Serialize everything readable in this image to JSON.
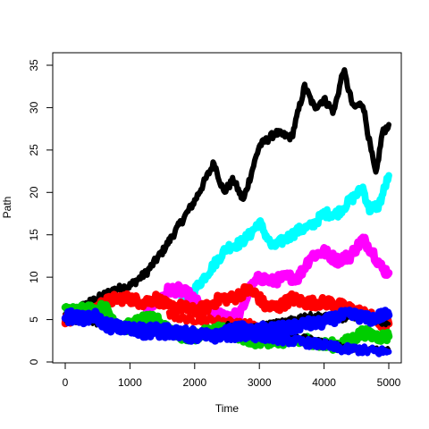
{
  "chart_data": {
    "type": "line",
    "title": "",
    "xlabel": "Time",
    "ylabel": "Path",
    "xlim": [
      0,
      5000
    ],
    "ylim": [
      0,
      36
    ],
    "xticks": [
      0,
      1000,
      2000,
      3000,
      4000,
      5000
    ],
    "yticks": [
      0,
      5,
      10,
      15,
      20,
      25,
      30,
      35
    ],
    "grid": false,
    "legend": "none",
    "series": [
      {
        "color": "#000000",
        "band": 0.7,
        "x": [
          0,
          250,
          500,
          750,
          1000,
          1250,
          1500,
          1750,
          2000,
          2100,
          2300,
          2450,
          2600,
          2750,
          3000,
          3250,
          3500,
          3700,
          3850,
          4000,
          4150,
          4300,
          4450,
          4600,
          4700,
          4800,
          4900,
          5000
        ],
        "y": [
          5.5,
          6.5,
          7.5,
          8.5,
          9.0,
          10.5,
          13.0,
          16.0,
          19.0,
          20.5,
          23.5,
          20.0,
          21.5,
          19.0,
          25.5,
          27.0,
          26.5,
          32.5,
          30.0,
          31.0,
          29.5,
          34.5,
          30.0,
          30.5,
          26.0,
          22.0,
          27.0,
          28.0
        ]
      },
      {
        "color": "#00ffff",
        "band": 0.9,
        "x": [
          1800,
          1900,
          2000,
          2100,
          2300,
          2500,
          2700,
          2850,
          3000,
          3200,
          3400,
          3600,
          3800,
          4000,
          4200,
          4400,
          4600,
          4700,
          4850,
          5000
        ],
        "y": [
          7.0,
          7.5,
          8.5,
          9.5,
          11.5,
          13.5,
          14.0,
          15.0,
          16.5,
          13.5,
          14.5,
          15.5,
          16.0,
          17.5,
          17.5,
          19.0,
          20.5,
          18.0,
          18.5,
          22.0
        ]
      },
      {
        "color": "#ff00ff",
        "band": 1.0,
        "x": [
          1200,
          1400,
          1600,
          1750,
          1900,
          2100,
          2300,
          2500,
          2700,
          2850,
          3000,
          3200,
          3400,
          3600,
          3800,
          4000,
          4200,
          4400,
          4600,
          4750,
          4900,
          5000
        ],
        "y": [
          6.5,
          7.0,
          8.5,
          8.5,
          8.0,
          6.5,
          5.5,
          5.5,
          5.5,
          8.5,
          10.0,
          9.5,
          10.0,
          10.0,
          12.5,
          13.0,
          12.0,
          12.5,
          14.5,
          13.0,
          11.0,
          10.5
        ]
      },
      {
        "color": "#ff0000",
        "band": 1.0,
        "x": [
          0,
          200,
          400,
          600,
          800,
          1000,
          1200,
          1400,
          1600,
          1800,
          2000,
          2200,
          2400,
          2600,
          2800,
          2950,
          3100,
          3300,
          3500,
          3700,
          3900,
          4100,
          4300,
          4500,
          4700,
          4850,
          5000
        ],
        "y": [
          5.0,
          5.5,
          6.0,
          7.0,
          7.5,
          7.5,
          7.0,
          7.5,
          6.5,
          6.5,
          6.0,
          6.5,
          7.5,
          7.5,
          8.5,
          8.0,
          6.5,
          6.5,
          7.5,
          7.0,
          7.0,
          7.0,
          6.5,
          6.0,
          5.5,
          4.5,
          4.5
        ]
      },
      {
        "color": "#ff0000",
        "band": 0.7,
        "x": [
          1600,
          1900,
          2200,
          2500,
          2700,
          2900,
          3050
        ],
        "y": [
          5.5,
          5.0,
          5.0,
          4.8,
          4.5,
          4.5,
          3.5
        ]
      },
      {
        "color": "#00cd00",
        "band": 1.0,
        "x": [
          0,
          150,
          300,
          450,
          600,
          750,
          900,
          1050,
          1200,
          1400,
          1600,
          1800,
          2000,
          2200,
          2400,
          2600,
          2800,
          3000,
          3200,
          3400,
          3600,
          3800,
          4000,
          4200,
          4400,
          4600,
          4800,
          5000
        ],
        "y": [
          6.0,
          6.0,
          6.5,
          6.0,
          6.5,
          5.0,
          4.0,
          4.5,
          5.0,
          5.0,
          4.0,
          3.0,
          3.0,
          3.5,
          4.0,
          3.0,
          2.5,
          2.5,
          2.5,
          2.5,
          2.5,
          2.5,
          2.0,
          2.0,
          2.5,
          3.5,
          3.0,
          3.0
        ]
      },
      {
        "color": "#00cd00",
        "band": 0.7,
        "x": [
          1500,
          1900,
          2300,
          2600,
          2900,
          3200
        ],
        "y": [
          3.5,
          3.5,
          3.0,
          3.5,
          3.0,
          3.0
        ]
      },
      {
        "color": "#000000",
        "band": 0.5,
        "x": [
          0,
          500,
          1000,
          1500,
          1800,
          2100,
          2400,
          2700,
          3000,
          3300,
          3600,
          3900,
          4200,
          4500,
          4800,
          5000
        ],
        "y": [
          5.0,
          4.5,
          3.8,
          3.5,
          3.2,
          3.0,
          3.5,
          3.2,
          3.5,
          3.5,
          3.0,
          2.5,
          2.0,
          1.5,
          1.5,
          1.5
        ]
      },
      {
        "color": "#000000",
        "band": 0.5,
        "x": [
          2500,
          2800,
          3100,
          3400,
          3700,
          4000,
          4300,
          4600,
          4800,
          5000
        ],
        "y": [
          4.5,
          4.0,
          4.5,
          4.8,
          5.5,
          5.5,
          5.0,
          5.5,
          4.8,
          4.5
        ]
      },
      {
        "color": "#0000ff",
        "band": 1.0,
        "x": [
          0,
          150,
          300,
          450,
          600,
          750,
          900,
          1100,
          1300,
          1500,
          1700,
          1900,
          2100,
          2300,
          2500,
          2700,
          2900,
          3100,
          3300,
          3500,
          3700,
          3900,
          4100,
          4300,
          4500,
          4700,
          4900,
          5000
        ],
        "y": [
          5.5,
          5.5,
          5.0,
          5.5,
          4.5,
          4.0,
          4.0,
          3.5,
          3.5,
          3.5,
          3.5,
          3.0,
          3.0,
          3.0,
          3.5,
          4.0,
          3.5,
          4.0,
          4.0,
          4.0,
          4.5,
          4.5,
          5.0,
          5.5,
          5.5,
          5.0,
          5.5,
          5.5
        ]
      },
      {
        "color": "#0000ff",
        "band": 0.8,
        "x": [
          0,
          500,
          1000,
          1500,
          2000,
          2500,
          3000,
          3500,
          4000,
          4300,
          4500,
          4700,
          5000
        ],
        "y": [
          5.0,
          5.0,
          4.0,
          4.0,
          3.5,
          3.0,
          3.0,
          2.5,
          2.0,
          1.5,
          1.5,
          1.3,
          1.2
        ]
      }
    ]
  }
}
